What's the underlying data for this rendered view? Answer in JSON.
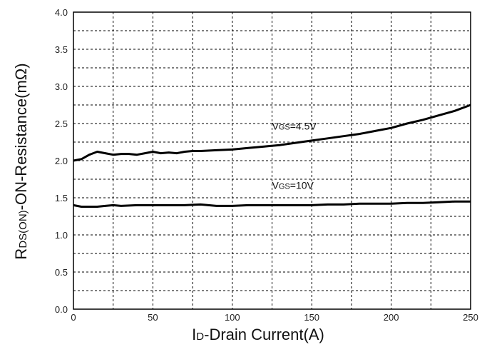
{
  "chart_data": {
    "type": "line",
    "xlabel": {
      "main": "I",
      "sub": "D",
      "rest": "-Drain Current(A)"
    },
    "ylabel": {
      "main": "R",
      "sub": "DS(ON)",
      "rest": "-ON-Resistance(mΩ)"
    },
    "xlim": [
      0,
      250
    ],
    "ylim": [
      0.0,
      4.0
    ],
    "x_ticks": [
      "0",
      "50",
      "100",
      "150",
      "200",
      "250"
    ],
    "y_ticks": [
      "0.0",
      "0.5",
      "1.0",
      "1.5",
      "2.0",
      "2.5",
      "3.0",
      "3.5",
      "4.0"
    ],
    "grid": true,
    "series": [
      {
        "name": "VGS=4.5V",
        "label": {
          "main": "V",
          "sub": "GS",
          "rest": "=4.5V"
        },
        "points": [
          [
            0,
            2.0
          ],
          [
            5,
            2.02
          ],
          [
            10,
            2.08
          ],
          [
            15,
            2.12
          ],
          [
            20,
            2.1
          ],
          [
            25,
            2.08
          ],
          [
            30,
            2.09
          ],
          [
            35,
            2.09
          ],
          [
            40,
            2.08
          ],
          [
            45,
            2.1
          ],
          [
            50,
            2.12
          ],
          [
            55,
            2.1
          ],
          [
            60,
            2.11
          ],
          [
            65,
            2.1
          ],
          [
            70,
            2.12
          ],
          [
            75,
            2.13
          ],
          [
            80,
            2.13
          ],
          [
            90,
            2.14
          ],
          [
            100,
            2.15
          ],
          [
            110,
            2.17
          ],
          [
            120,
            2.19
          ],
          [
            130,
            2.21
          ],
          [
            140,
            2.24
          ],
          [
            150,
            2.27
          ],
          [
            160,
            2.3
          ],
          [
            170,
            2.33
          ],
          [
            180,
            2.36
          ],
          [
            190,
            2.4
          ],
          [
            200,
            2.44
          ],
          [
            210,
            2.5
          ],
          [
            220,
            2.55
          ],
          [
            230,
            2.61
          ],
          [
            240,
            2.67
          ],
          [
            250,
            2.75
          ]
        ]
      },
      {
        "name": "VGS=10V",
        "label": {
          "main": "V",
          "sub": "GS",
          "rest": "=10V"
        },
        "points": [
          [
            0,
            1.4
          ],
          [
            5,
            1.38
          ],
          [
            10,
            1.38
          ],
          [
            15,
            1.38
          ],
          [
            20,
            1.39
          ],
          [
            25,
            1.4
          ],
          [
            30,
            1.39
          ],
          [
            40,
            1.4
          ],
          [
            50,
            1.4
          ],
          [
            60,
            1.4
          ],
          [
            70,
            1.4
          ],
          [
            80,
            1.41
          ],
          [
            90,
            1.39
          ],
          [
            100,
            1.39
          ],
          [
            110,
            1.4
          ],
          [
            120,
            1.4
          ],
          [
            130,
            1.4
          ],
          [
            140,
            1.4
          ],
          [
            150,
            1.4
          ],
          [
            160,
            1.41
          ],
          [
            170,
            1.41
          ],
          [
            180,
            1.42
          ],
          [
            190,
            1.42
          ],
          [
            200,
            1.42
          ],
          [
            210,
            1.43
          ],
          [
            220,
            1.43
          ],
          [
            230,
            1.44
          ],
          [
            240,
            1.45
          ],
          [
            250,
            1.45
          ]
        ]
      }
    ]
  }
}
